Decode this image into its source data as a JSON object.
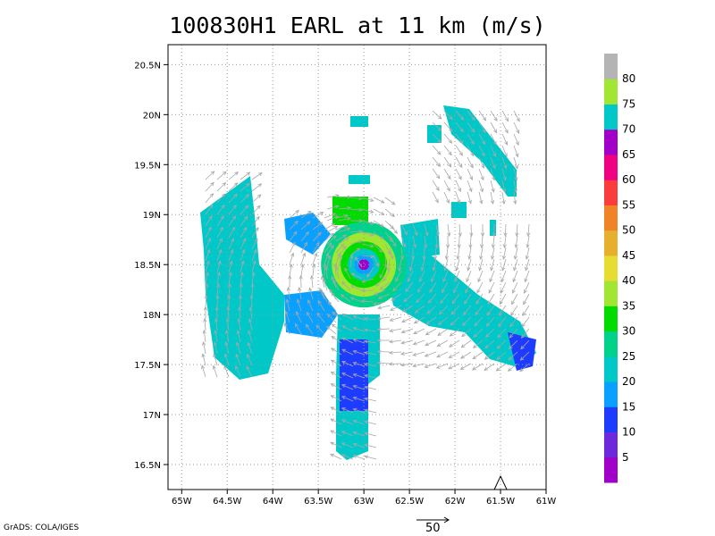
{
  "title": "100830H1 EARL at 11 km (m/s)",
  "footer": "GrADS: COLA/IGES",
  "reference_vector": {
    "label": "50"
  },
  "map": {
    "lon_range": [
      -65.15,
      -61.0
    ],
    "lat_range": [
      16.25,
      20.7
    ],
    "x_ticks": [
      {
        "lon": -65.0,
        "label": "65W"
      },
      {
        "lon": -64.5,
        "label": "64.5W"
      },
      {
        "lon": -64.0,
        "label": "64W"
      },
      {
        "lon": -63.5,
        "label": "63.5W"
      },
      {
        "lon": -63.0,
        "label": "63W"
      },
      {
        "lon": -62.5,
        "label": "62.5W"
      },
      {
        "lon": -62.0,
        "label": "62W"
      },
      {
        "lon": -61.5,
        "label": "61.5W"
      },
      {
        "lon": -61.0,
        "label": "61W"
      }
    ],
    "y_ticks": [
      {
        "lat": 16.5,
        "label": "16.5N"
      },
      {
        "lat": 17.0,
        "label": "17N"
      },
      {
        "lat": 17.5,
        "label": "17.5N"
      },
      {
        "lat": 18.0,
        "label": "18N"
      },
      {
        "lat": 18.5,
        "label": "18.5N"
      },
      {
        "lat": 19.0,
        "label": "19N"
      },
      {
        "lat": 19.5,
        "label": "19.5N"
      },
      {
        "lat": 20.0,
        "label": "20N"
      },
      {
        "lat": 20.5,
        "label": "20.5N"
      }
    ],
    "center": {
      "lon": -63.0,
      "lat": 18.5
    },
    "storm_marker": {
      "lon": -61.5,
      "lat": 16.33
    }
  },
  "colorbar": {
    "labels": [
      "5",
      "10",
      "15",
      "20",
      "25",
      "30",
      "35",
      "40",
      "45",
      "50",
      "55",
      "60",
      "65",
      "70",
      "75",
      "80"
    ],
    "colors": [
      "#a000c8",
      "#6e28dc",
      "#1e3cff",
      "#0aa0ff",
      "#00c8c8",
      "#00d28c",
      "#00dc00",
      "#a0e632",
      "#e6dc32",
      "#e6af2d",
      "#f08228",
      "#fa3c3c",
      "#f00082",
      "#a000c8",
      "#00c8c8",
      "#a0e632",
      "#b4b4b4"
    ]
  },
  "colors": {
    "frame": "#000000",
    "grid": "#9a9a9a",
    "vector": "#a8a8a8"
  }
}
